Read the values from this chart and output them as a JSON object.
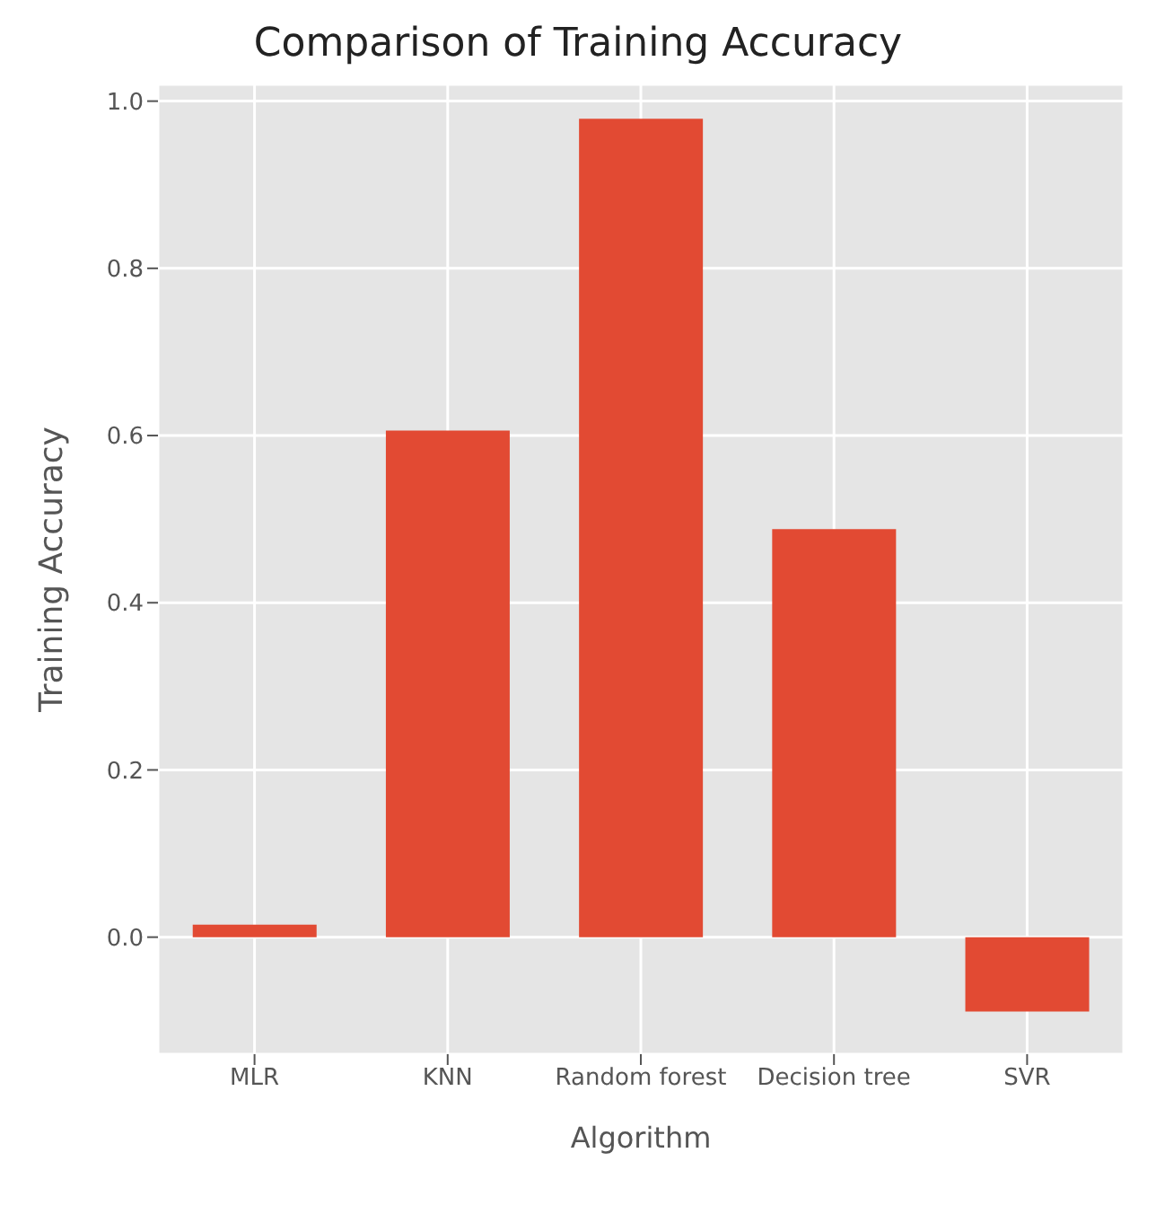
{
  "chart_data": {
    "type": "bar",
    "title": "Comparison of Training Accuracy",
    "xlabel": "Algorithm",
    "ylabel": "Training Accuracy",
    "categories": [
      "MLR",
      "KNN",
      "Random forest",
      "Decision tree",
      "SVR"
    ],
    "values": [
      0.015,
      0.606,
      0.979,
      0.488,
      -0.089
    ],
    "color": "#e24a33",
    "ylim": [
      -0.14,
      1.02
    ],
    "yticks": [
      {
        "value": 0,
        "label": "0.0"
      },
      {
        "value": 0.2,
        "label": "0.2"
      },
      {
        "value": 0.4,
        "label": "0.4"
      },
      {
        "value": 0.6,
        "label": "0.6"
      },
      {
        "value": 0.8,
        "label": "0.8"
      },
      {
        "value": 1,
        "label": "1.0"
      }
    ],
    "grid": true
  }
}
